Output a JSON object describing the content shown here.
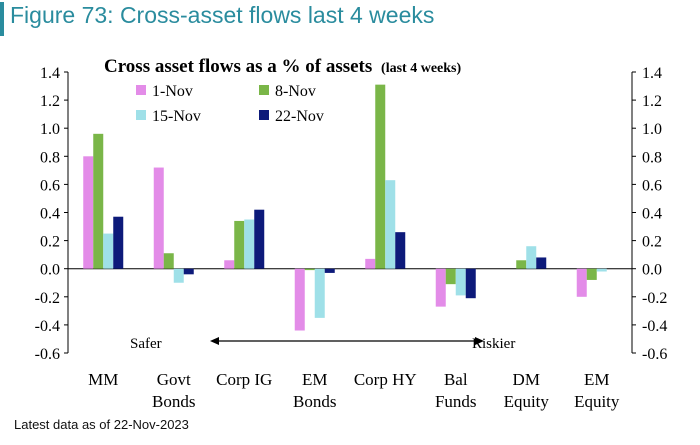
{
  "figure_title": "Figure 73: Cross-asset flows last 4 weeks",
  "footnote": "Latest data as of 22-Nov-2023",
  "colors": {
    "title": "#2a8c9e"
  },
  "chart_data": {
    "type": "bar",
    "title": "Cross asset flows as a % of assets",
    "title_suffix": "(last 4 weeks)",
    "categories": [
      [
        "MM"
      ],
      [
        "Govt",
        "Bonds"
      ],
      [
        "Corp IG"
      ],
      [
        "EM",
        "Bonds"
      ],
      [
        "Corp HY"
      ],
      [
        "Bal",
        "Funds"
      ],
      [
        "DM",
        "Equity"
      ],
      [
        "EM",
        "Equity"
      ]
    ],
    "series": [
      {
        "name": "1-Nov",
        "color": "#e38ce8",
        "values": [
          0.8,
          0.72,
          0.06,
          -0.44,
          0.07,
          -0.27,
          0.0,
          -0.2
        ]
      },
      {
        "name": "8-Nov",
        "color": "#7ab648",
        "values": [
          0.96,
          0.11,
          0.34,
          -0.01,
          1.31,
          -0.11,
          0.06,
          -0.08
        ]
      },
      {
        "name": "15-Nov",
        "color": "#9fe0e8",
        "values": [
          0.25,
          -0.1,
          0.35,
          -0.35,
          0.63,
          -0.19,
          0.16,
          -0.02
        ]
      },
      {
        "name": "22-Nov",
        "color": "#0d1a7a",
        "values": [
          0.37,
          -0.04,
          0.42,
          -0.03,
          0.26,
          -0.21,
          0.08,
          0.0
        ]
      }
    ],
    "ylim": [
      -0.6,
      1.4
    ],
    "yticks": [
      "1.4",
      "1.2",
      "1.0",
      "0.8",
      "0.6",
      "0.4",
      "0.2",
      "0.0",
      "-0.2",
      "-0.4",
      "-0.6"
    ],
    "annotation_left": "Safer",
    "annotation_right": "Riskier",
    "legend_position": "top-left",
    "grid": false
  }
}
